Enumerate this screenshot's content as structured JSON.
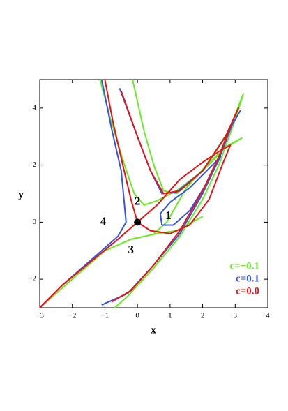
{
  "chart_data": {
    "type": "line",
    "xlabel": "x",
    "ylabel": "y",
    "xlim": [
      -3,
      4
    ],
    "ylim": [
      -3,
      5
    ],
    "xticks": [
      {
        "value": -3,
        "label": "−3"
      },
      {
        "value": -2,
        "label": "−2"
      },
      {
        "value": -1,
        "label": "−1"
      },
      0,
      1,
      2,
      3,
      4
    ],
    "yticks": [
      {
        "value": -2,
        "label": "−2"
      },
      0,
      2,
      4
    ],
    "series": [
      {
        "name": "c=−0.1",
        "color": "#66ee22",
        "x": [
          -1.15,
          -0.8,
          -0.4,
          -0.1,
          0.2,
          0.6,
          1.2,
          2,
          2.7,
          3.2,
          2.8,
          2.2,
          1.5,
          0.9,
          0.5,
          null,
          -3,
          -2,
          -1,
          -0.2,
          0.6,
          1.2,
          2,
          null,
          -0.15,
          0.2,
          0.5,
          0.8,
          1.2,
          2,
          2.8,
          3.25,
          3.0,
          2.5,
          2,
          1.3,
          0.5,
          -0.3,
          -0.7
        ],
        "y": [
          5,
          3.5,
          2,
          1.0,
          0.6,
          0.75,
          1.1,
          1.8,
          2.6,
          2.95,
          2.7,
          2.1,
          1.2,
          0,
          -0.4,
          null,
          -3,
          -2,
          -1,
          -0.6,
          -0.4,
          -0.3,
          0.2,
          null,
          5,
          3.2,
          2,
          1.1,
          1.0,
          1.8,
          3.2,
          4.5,
          3.6,
          2.0,
          0.8,
          -0.5,
          -1.6,
          -2.6,
          -3
        ]
      },
      {
        "name": "c=0.1",
        "color": "#3355ee",
        "x": [
          -1.1,
          -0.8,
          -0.5,
          -0.4,
          -0.35,
          -0.6,
          -1.5,
          -2.3,
          -3,
          null,
          0.75,
          0.7,
          1,
          1.6,
          2.3,
          2.55,
          2.2,
          1.6,
          1.1,
          0.75,
          null,
          -0.55,
          0,
          0.4,
          0.75,
          1.2,
          2,
          2.7,
          3.15,
          2.9,
          2.5,
          2,
          1.3,
          0.5,
          -0.3,
          -1.1
        ],
        "y": [
          5,
          3.3,
          1.8,
          0.6,
          0,
          -0.5,
          -1.4,
          -2.2,
          -3,
          null,
          -0.1,
          0.3,
          0.7,
          1.2,
          2,
          2.3,
          1.5,
          0.4,
          -0.1,
          -0.1,
          null,
          4.7,
          3,
          1.8,
          1.0,
          1.05,
          1.8,
          3,
          3.9,
          3.4,
          2.2,
          1.0,
          -0.4,
          -1.5,
          -2.5,
          -2.9
        ]
      },
      {
        "name": "c=0.0",
        "color": "#ee1111",
        "x": [
          -1.0,
          -0.75,
          -0.45,
          -0.2,
          0,
          -0.6,
          -1.5,
          -2.3,
          -3,
          null,
          0,
          0.4,
          1,
          1.6,
          2.2,
          2.6,
          2.85,
          2.6,
          2,
          1.3,
          0.6,
          0,
          null,
          -0.5,
          0,
          0.4,
          0.8,
          1.3,
          2,
          2.7,
          3.1,
          2.9,
          2.5,
          2,
          1.3,
          0.5,
          -0.2,
          -0.8
        ],
        "y": [
          5,
          3.5,
          2,
          0.8,
          0,
          -0.6,
          -1.45,
          -2.2,
          -3,
          null,
          0,
          -0.3,
          -0.4,
          -0.1,
          0.8,
          2.0,
          2.7,
          2.55,
          2.1,
          1.5,
          0.6,
          0,
          null,
          4.6,
          3,
          1.8,
          1.0,
          1.1,
          1.8,
          3,
          4.0,
          3.5,
          2.3,
          1.1,
          -0.3,
          -1.5,
          -2.4,
          -2.8
        ]
      }
    ],
    "point": {
      "x": 0,
      "y": 0
    },
    "annotations": [
      {
        "text": "1",
        "x": 0.95,
        "y": 0.2
      },
      {
        "text": "2",
        "x": 0,
        "y": 0.7
      },
      {
        "text": "3",
        "x": -0.2,
        "y": -1.0
      },
      {
        "text": "4",
        "x": -1.05,
        "y": 0
      }
    ]
  }
}
